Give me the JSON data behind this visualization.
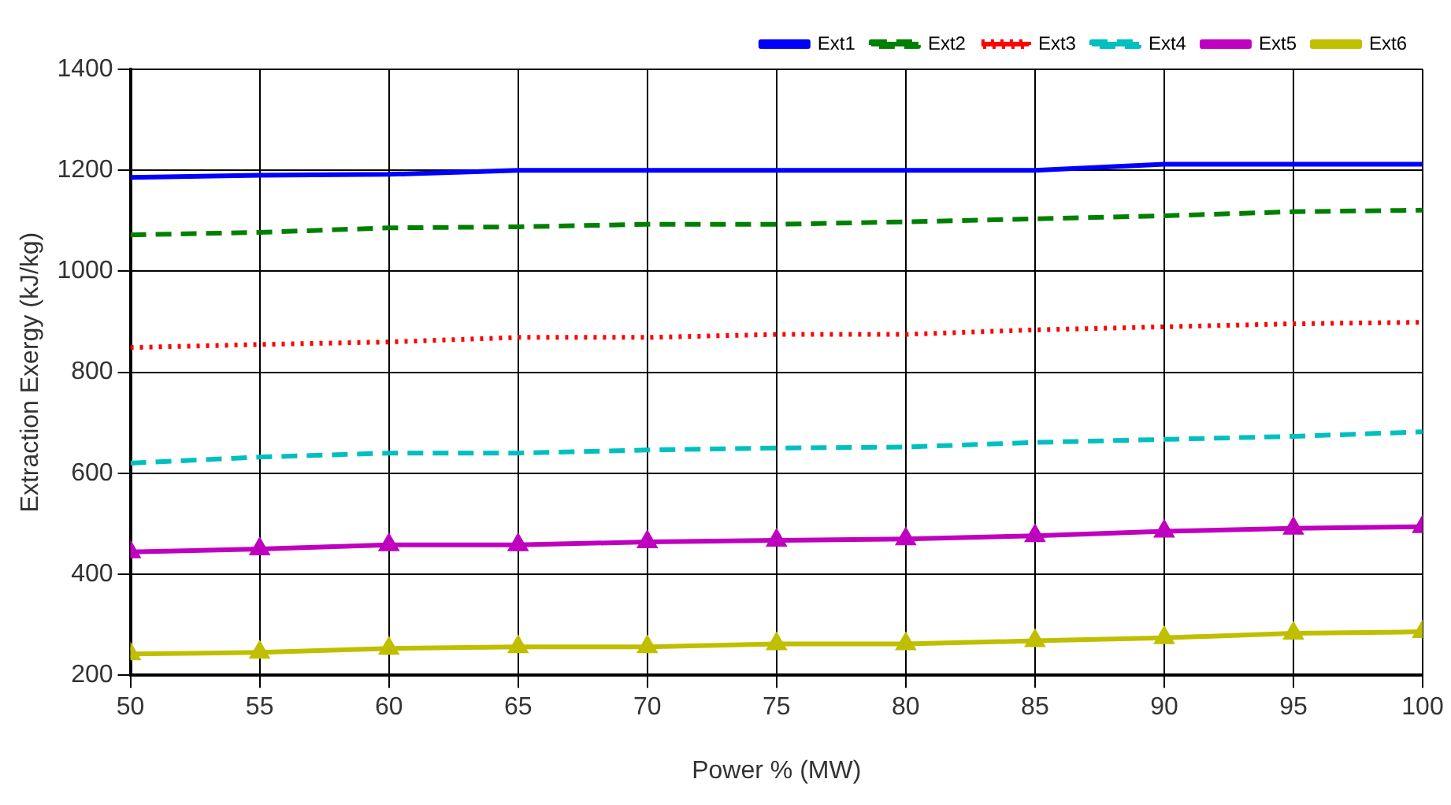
{
  "chart_data": {
    "type": "line",
    "xlabel": "Power % (MW)",
    "ylabel": "Extraction Exergy (kJ/kg)",
    "x": [
      50,
      55,
      60,
      65,
      70,
      75,
      80,
      85,
      90,
      95,
      100
    ],
    "xlim": [
      50,
      100
    ],
    "xticks": [
      50,
      55,
      60,
      65,
      70,
      75,
      80,
      85,
      90,
      95,
      100
    ],
    "ylim": [
      200,
      1400
    ],
    "yticks": [
      200,
      400,
      600,
      800,
      1000,
      1200,
      1400
    ],
    "grid": true,
    "legend": "top right",
    "series": [
      {
        "name": "Ext1",
        "color": "#0000ff",
        "line_style": "solid",
        "marker": "none",
        "values": [
          1186,
          1190,
          1192,
          1200,
          1200,
          1200,
          1200,
          1200,
          1212,
          1212,
          1212
        ]
      },
      {
        "name": "Ext2",
        "color": "#008000",
        "line_style": "dashed",
        "marker": "none",
        "values": [
          1072,
          1077,
          1086,
          1088,
          1093,
          1093,
          1098,
          1104,
          1110,
          1118,
          1121
        ]
      },
      {
        "name": "Ext3",
        "color": "#ff0000",
        "line_style": "dotted",
        "marker": "none",
        "values": [
          849,
          855,
          860,
          869,
          869,
          875,
          875,
          884,
          890,
          896,
          899
        ]
      },
      {
        "name": "Ext4",
        "color": "#00bfbf",
        "line_style": "dashed",
        "marker": "none",
        "values": [
          620,
          632,
          640,
          640,
          646,
          650,
          652,
          661,
          667,
          673,
          682
        ]
      },
      {
        "name": "Ext5",
        "color": "#bf00bf",
        "line_style": "solid",
        "marker": "triangle",
        "values": [
          444,
          450,
          458,
          458,
          464,
          467,
          470,
          476,
          485,
          491,
          494
        ]
      },
      {
        "name": "Ext6",
        "color": "#bfbf00",
        "line_style": "solid",
        "marker": "triangle",
        "values": [
          242,
          245,
          253,
          256,
          256,
          262,
          262,
          268,
          274,
          283,
          286
        ]
      }
    ]
  }
}
